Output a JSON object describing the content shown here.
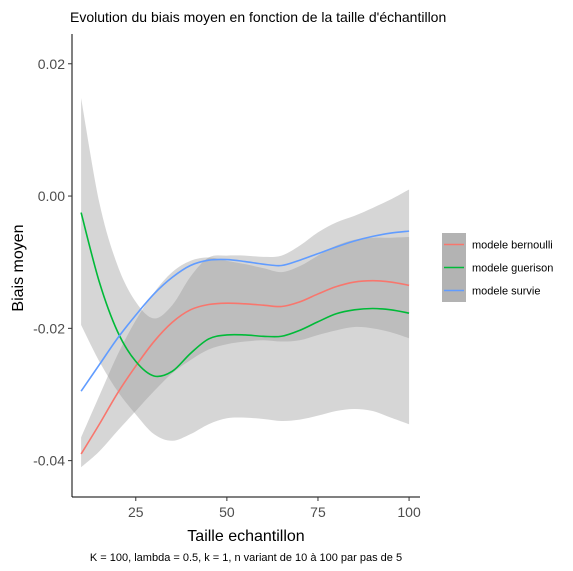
{
  "chart_data": {
    "type": "line",
    "title": "Evolution du biais moyen en fonction de la taille d'échantillon",
    "xlabel": "Taille echantillon",
    "ylabel": "Biais moyen",
    "caption": "K = 100, lambda = 0.5, k = 1, n variant de 10 à 100 par pas de 5",
    "xlim": [
      7.5,
      103
    ],
    "ylim": [
      -0.0455,
      0.0245
    ],
    "x_ticks": [
      25,
      50,
      75,
      100
    ],
    "x_tick_labels": [
      "25",
      "50",
      "75",
      "100"
    ],
    "y_ticks": [
      -0.04,
      -0.02,
      0.0,
      0.02
    ],
    "y_tick_labels": [
      "-0.04",
      "-0.02",
      "0.00",
      "0.02"
    ],
    "grid": false,
    "legend_position": "right",
    "band_colors": {
      "fill": "#999999",
      "opacity": 0.4
    },
    "series": [
      {
        "name": "modele bernoulli",
        "color": "#f8766d",
        "x": [
          10,
          15,
          20,
          25,
          30,
          35,
          40,
          45,
          50,
          55,
          60,
          65,
          70,
          75,
          80,
          85,
          90,
          95,
          100
        ],
        "y": [
          -0.039,
          -0.0345,
          -0.0298,
          -0.0257,
          -0.022,
          -0.0191,
          -0.0172,
          -0.0164,
          -0.0162,
          -0.0163,
          -0.0165,
          -0.0167,
          -0.016,
          -0.0148,
          -0.0137,
          -0.013,
          -0.0128,
          -0.013,
          -0.0135
        ],
        "lower": [
          -0.041,
          -0.0386,
          -0.0355,
          -0.0325,
          -0.0295,
          -0.0268,
          -0.0248,
          -0.0232,
          -0.0224,
          -0.022,
          -0.0218,
          -0.022,
          -0.0218,
          -0.021,
          -0.0203,
          -0.0198,
          -0.02,
          -0.0206,
          -0.0215
        ],
        "upper": [
          -0.0365,
          -0.0302,
          -0.024,
          -0.0188,
          -0.0146,
          -0.0115,
          -0.0098,
          -0.0093,
          -0.0098,
          -0.0103,
          -0.0109,
          -0.0115,
          -0.0106,
          -0.009,
          -0.0075,
          -0.0066,
          -0.0063,
          -0.0063,
          -0.0062
        ]
      },
      {
        "name": "modele guerison",
        "color": "#00ba38",
        "x": [
          10,
          15,
          20,
          25,
          30,
          35,
          40,
          45,
          50,
          55,
          60,
          65,
          70,
          75,
          80,
          85,
          90,
          95,
          100
        ],
        "y": [
          -0.0025,
          -0.013,
          -0.0205,
          -0.025,
          -0.0272,
          -0.0265,
          -0.0238,
          -0.0216,
          -0.021,
          -0.021,
          -0.0212,
          -0.0212,
          -0.0203,
          -0.019,
          -0.0178,
          -0.0172,
          -0.017,
          -0.0172,
          -0.0177
        ],
        "lower": [
          -0.0195,
          -0.025,
          -0.0295,
          -0.033,
          -0.036,
          -0.037,
          -0.036,
          -0.0345,
          -0.0336,
          -0.0335,
          -0.0337,
          -0.034,
          -0.0338,
          -0.0332,
          -0.0325,
          -0.0322,
          -0.0325,
          -0.0335,
          -0.0345
        ],
        "upper": [
          0.0148,
          -0.001,
          -0.0105,
          -0.016,
          -0.0185,
          -0.0165,
          -0.0122,
          -0.0093,
          -0.009,
          -0.009,
          -0.0092,
          -0.009,
          -0.0075,
          -0.0055,
          -0.004,
          -0.003,
          -0.0018,
          -0.0005,
          0.001
        ]
      },
      {
        "name": "modele survie",
        "color": "#619cff",
        "x": [
          10,
          15,
          20,
          25,
          30,
          35,
          40,
          45,
          50,
          55,
          60,
          65,
          70,
          75,
          80,
          85,
          90,
          95,
          100
        ],
        "y": [
          -0.0295,
          -0.0255,
          -0.0215,
          -0.018,
          -0.0148,
          -0.0123,
          -0.0105,
          -0.0097,
          -0.0096,
          -0.0099,
          -0.0103,
          -0.0105,
          -0.0097,
          -0.0087,
          -0.0077,
          -0.0068,
          -0.0061,
          -0.0056,
          -0.0053
        ]
      }
    ]
  }
}
